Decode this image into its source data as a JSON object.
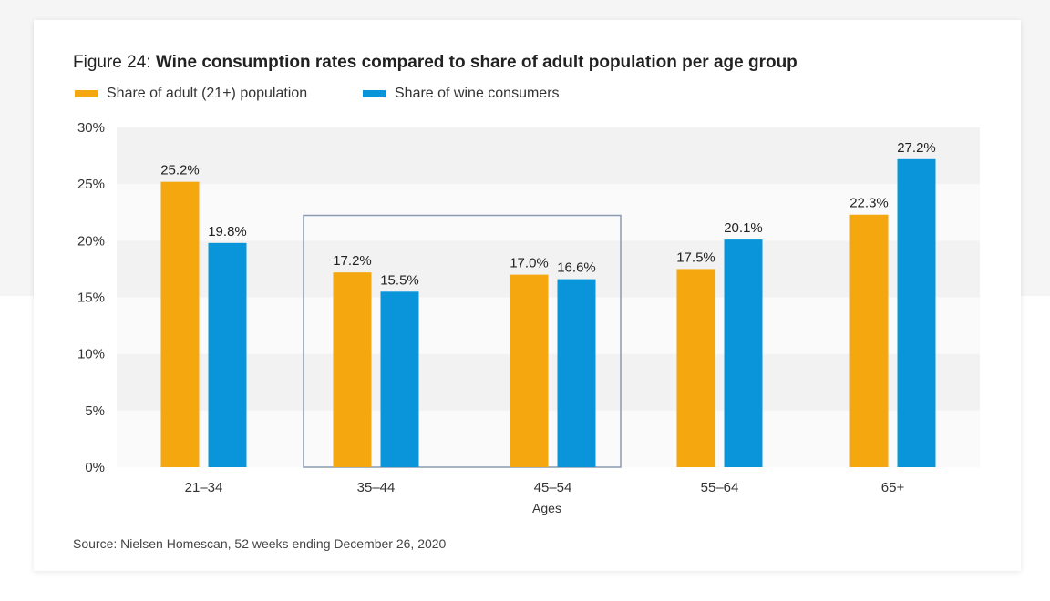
{
  "figure": {
    "prefix": "Figure 24:",
    "title": "Wine consumption rates compared to share of adult population per age group",
    "source": "Source: Nielsen Homescan, 52 weeks ending December 26, 2020"
  },
  "chart_data": {
    "type": "bar",
    "categories": [
      "21–34",
      "35–44",
      "45–54",
      "55–64",
      "65+"
    ],
    "series": [
      {
        "name": "Share of adult (21+) population",
        "color": "#f5a70f",
        "values": [
          25.2,
          17.2,
          17.0,
          17.5,
          22.3
        ],
        "labels": [
          "25.2%",
          "17.2%",
          "17.0%",
          "17.5%",
          "22.3%"
        ]
      },
      {
        "name": "Share of wine consumers",
        "color": "#0a95db",
        "values": [
          19.8,
          15.5,
          16.6,
          20.1,
          27.2
        ],
        "labels": [
          "19.8%",
          "15.5%",
          "16.6%",
          "20.1%",
          "27.2%"
        ]
      }
    ],
    "xlabel": "Ages",
    "ylabel": "",
    "ylim": [
      0,
      30
    ],
    "yticks": [
      "0%",
      "5%",
      "10%",
      "15%",
      "20%",
      "25%",
      "30%"
    ],
    "grid": "alternating horizontal bands",
    "legend_position": "top-left",
    "annotation": "box highlighting 35–44 and 45–54 groups"
  }
}
